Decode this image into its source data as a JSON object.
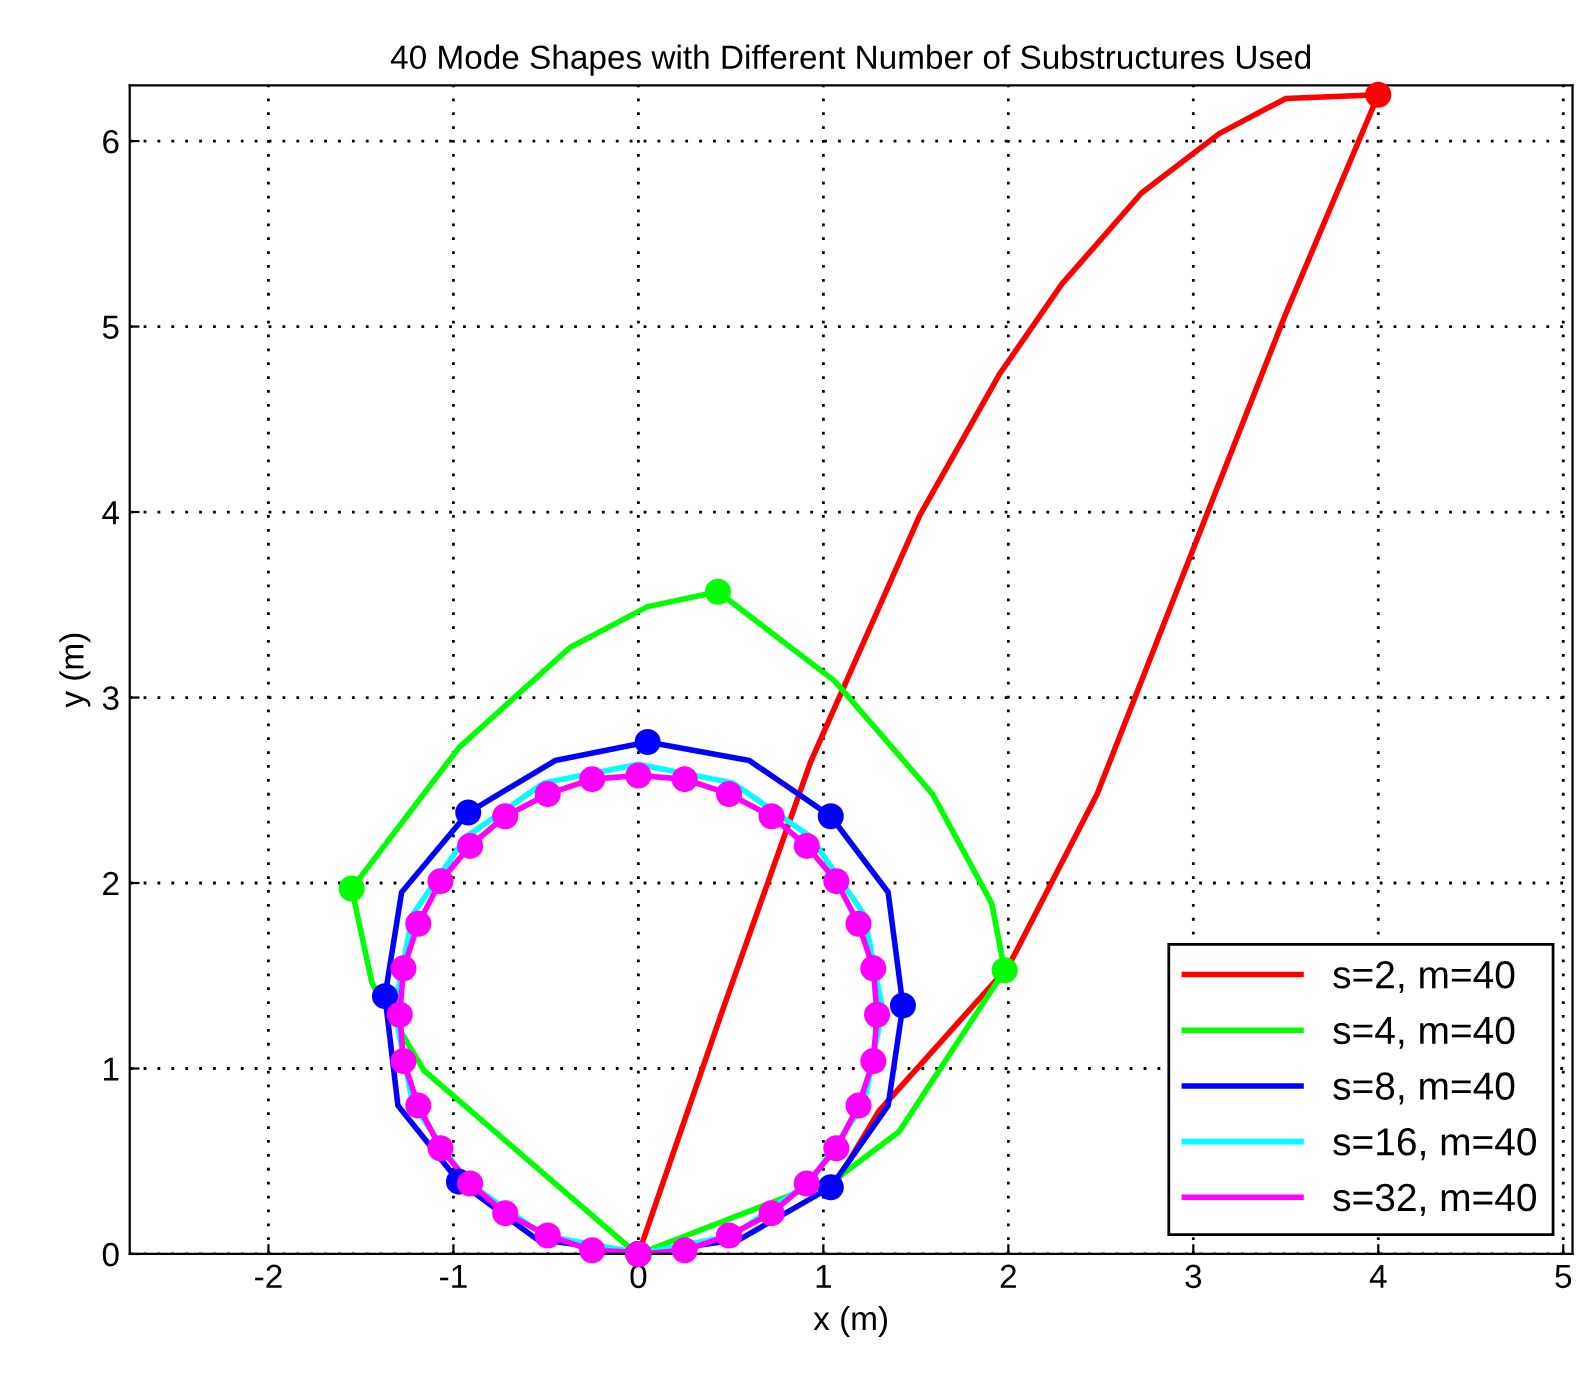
{
  "chart_data": {
    "type": "line",
    "title": "40 Mode Shapes with Different Number of Substructures Used",
    "xlabel": "x (m)",
    "ylabel": "y (m)",
    "xlim": [
      -2.75,
      5.05
    ],
    "ylim": [
      0,
      6.3
    ],
    "xticks": [
      -2,
      -1,
      0,
      1,
      2,
      3,
      4,
      5
    ],
    "yticks": [
      0,
      1,
      2,
      3,
      4,
      5,
      6
    ],
    "grid": true,
    "legend": "bottom right",
    "line_style": "solid",
    "marker": "none",
    "series": [
      {
        "name": "s=2, m=40",
        "color": "#ff0000",
        "x": [
          0,
          0.45,
          0.93,
          1.52,
          1.95,
          2.29,
          2.72,
          3.14,
          3.5,
          4,
          3.5,
          3.07,
          2.48,
          2.0,
          1.3,
          1.09
        ],
        "values": [
          0,
          1.3,
          2.65,
          3.98,
          4.74,
          5.23,
          5.72,
          6.04,
          6.23,
          6.25,
          5.07,
          3.98,
          2.48,
          1.55,
          0.77,
          0.42
        ]
      },
      {
        "name": "s=4, m=40",
        "color": "#00ff00",
        "x": [
          0,
          1.09,
          1.41,
          1.98,
          1.91,
          1.59,
          1.06,
          0.43,
          0.05,
          -0.37,
          -0.97,
          -1.55,
          -1.44,
          -1.16,
          -0.02
        ],
        "values": [
          0,
          0.42,
          0.66,
          1.53,
          1.89,
          2.48,
          3.09,
          3.57,
          3.49,
          3.27,
          2.73,
          1.97,
          1.46,
          0.99,
          0.01
        ]
      },
      {
        "name": "s=8, m=40",
        "color": "#0000ff",
        "x": [
          0,
          0.55,
          1.04,
          1.35,
          1.43,
          1.35,
          1.04,
          0.6,
          0.05,
          -0.45,
          -0.92,
          -1.28,
          -1.37,
          -1.3,
          -0.97,
          -0.55,
          -0.02
        ],
        "values": [
          0,
          0.08,
          0.36,
          0.8,
          1.34,
          1.95,
          2.36,
          2.66,
          2.76,
          2.66,
          2.38,
          1.95,
          1.39,
          0.8,
          0.39,
          0.08,
          0.01
        ]
      },
      {
        "name": "s=16, m=40",
        "color": "#00ffff",
        "x": [
          0,
          0.51,
          0.93,
          1.22,
          1.32,
          1.22,
          0.93,
          0.51,
          0,
          -0.51,
          -0.93,
          -1.22,
          -1.32,
          -1.22,
          -0.93,
          -0.51,
          -0.02
        ],
        "values": [
          0,
          0.1,
          0.39,
          0.81,
          1.32,
          1.83,
          2.25,
          2.54,
          2.64,
          2.54,
          2.25,
          1.83,
          1.32,
          0.81,
          0.39,
          0.1,
          0.01
        ]
      },
      {
        "name": "s=32, m=40",
        "color": "#ff00ff",
        "x": [
          0,
          0.25,
          0.49,
          0.72,
          0.91,
          1.07,
          1.19,
          1.27,
          1.29,
          1.27,
          1.19,
          1.07,
          0.91,
          0.72,
          0.49,
          0.25,
          0,
          -0.25,
          -0.49,
          -0.72,
          -0.91,
          -1.07,
          -1.19,
          -1.27,
          -1.29,
          -1.27,
          -1.19,
          -1.07,
          -0.91,
          -0.72,
          -0.49,
          -0.25,
          -0.02
        ],
        "values": [
          0,
          0.02,
          0.1,
          0.22,
          0.38,
          0.57,
          0.8,
          1.04,
          1.29,
          1.54,
          1.78,
          2.01,
          2.2,
          2.36,
          2.48,
          2.56,
          2.58,
          2.56,
          2.48,
          2.36,
          2.2,
          2.01,
          1.78,
          1.54,
          1.29,
          1.04,
          0.8,
          0.57,
          0.38,
          0.22,
          0.1,
          0.02,
          0.01
        ]
      },
      {
        "type": "scatter",
        "marker": "circle",
        "color": "#ff0000",
        "x": [
          0,
          4
        ],
        "values": [
          0,
          6.25
        ]
      },
      {
        "type": "scatter",
        "marker": "circle",
        "color": "#00ff00",
        "x": [
          0,
          1.98,
          0.43,
          -1.55
        ],
        "values": [
          0,
          1.53,
          3.57,
          1.97
        ]
      },
      {
        "type": "scatter",
        "marker": "circle",
        "color": "#0000ff",
        "x": [
          0,
          1.04,
          1.43,
          1.04,
          0.05,
          -0.92,
          -1.37,
          -0.97
        ],
        "values": [
          0,
          0.36,
          1.34,
          2.36,
          2.76,
          2.38,
          1.39,
          0.39
        ]
      },
      {
        "type": "scatter",
        "marker": "circle",
        "color": "#ff00ff",
        "x": [
          0,
          0.25,
          0.49,
          0.72,
          0.91,
          1.07,
          1.19,
          1.27,
          1.29,
          1.27,
          1.19,
          1.07,
          0.91,
          0.72,
          0.49,
          0.25,
          0,
          -0.25,
          -0.49,
          -0.72,
          -0.91,
          -1.07,
          -1.19,
          -1.27,
          -1.29,
          -1.27,
          -1.19,
          -1.07,
          -0.91,
          -0.72,
          -0.49,
          -0.25
        ],
        "values": [
          0,
          0.02,
          0.1,
          0.22,
          0.38,
          0.57,
          0.8,
          1.04,
          1.29,
          1.54,
          1.78,
          2.01,
          2.2,
          2.36,
          2.48,
          2.56,
          2.58,
          2.56,
          2.48,
          2.36,
          2.2,
          2.01,
          1.78,
          1.54,
          1.29,
          1.04,
          0.8,
          0.57,
          0.38,
          0.22,
          0.1,
          0.02
        ]
      }
    ]
  }
}
